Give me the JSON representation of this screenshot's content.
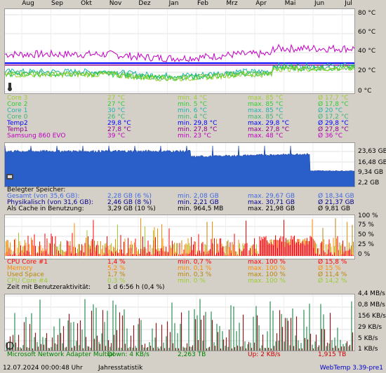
{
  "months": [
    "Aug",
    "Sep",
    "Okt",
    "Nov",
    "Dez",
    "Jan",
    "Feb",
    "Mrz",
    "Apr",
    "Mai",
    "Jun",
    "Jul"
  ],
  "temp_axis": [
    "80 °C",
    "60 °C",
    "40 °C",
    "20 °C",
    "0 °C"
  ],
  "temp_rows": [
    {
      "name": "Core 3",
      "cur": "27 °C",
      "min": "min. 4 °C",
      "max": "max. 85 °C",
      "avg": "Ø 17,7 °C",
      "color": "#9acd32"
    },
    {
      "name": "Core 2",
      "cur": "27 °C",
      "min": "min. 5 °C",
      "max": "max. 85 °C",
      "avg": "Ø 17,8 °C",
      "color": "#32cd32"
    },
    {
      "name": "Core 1",
      "cur": "30 °C",
      "min": "min. 6 °C",
      "max": "max. 85 °C",
      "avg": "Ø 20 °C",
      "color": "#20b2aa"
    },
    {
      "name": "Core 0",
      "cur": "26 °C",
      "min": "min. 4 °C",
      "max": "max. 85 °C",
      "avg": "Ø 17,2 °C",
      "color": "#3cb371"
    },
    {
      "name": "Temp2",
      "cur": "29,8 °C",
      "min": "min. 29,8 °C",
      "max": "max. 29,8 °C",
      "avg": "Ø 29,8 °C",
      "color": "#0000ff"
    },
    {
      "name": "Temp1",
      "cur": "27,8 °C",
      "min": "min. 27,8 °C",
      "max": "max. 27,8 °C",
      "avg": "Ø 27,8 °C",
      "color": "#8b008b"
    },
    {
      "name": "Samsung 860 EVO",
      "cur": "39 °C",
      "min": "min. 23 °C",
      "max": "max. 48 °C",
      "avg": "Ø 36 °C",
      "color": "#c000c0"
    }
  ],
  "mem_axis": [
    "23,63 GB",
    "16,48 GB",
    "9,34 GB",
    "2,2 GB"
  ],
  "mem_title": "Belegter Speicher:",
  "mem_rows": [
    {
      "name": "Gesamt (von 35,6 GB):",
      "cur": "2,28 GB (6 %)",
      "min": "min. 2,08 GB",
      "max": "max. 29,67 GB",
      "avg": "Ø 18,34 GB",
      "color": "#4169e1"
    },
    {
      "name": "Physikalisch (von 31,6 GB):",
      "cur": "2,46 GB (8 %)",
      "min": "min. 2,21 GB",
      "max": "max. 30,71 GB",
      "avg": "Ø 21,37 GB",
      "color": "#00008b"
    },
    {
      "name": "Als Cache in Benutzung:",
      "cur": "3,29 GB (10 %)",
      "min": "min. 964,5 MB",
      "max": "max. 21,98 GB",
      "avg": "Ø 9,81 GB",
      "color": "#000000"
    }
  ],
  "cpu_axis": [
    "100 %",
    "75 %",
    "50 %",
    "25 %",
    "0 %"
  ],
  "cpu_rows": [
    {
      "name": "CPU Core #1",
      "cur": "1,4 %",
      "min": "min. 0,7 %",
      "max": "max. 100 %",
      "avg": "Ø 15,8 %",
      "color": "#ff0000"
    },
    {
      "name": "Memory",
      "cur": "5,2 %",
      "min": "min. 0,1 %",
      "max": "max. 100 %",
      "avg": "Ø 15 %",
      "color": "#ff8c00"
    },
    {
      "name": "Used Space",
      "cur": "1,7 %",
      "min": "min. 0,3 %",
      "max": "max. 100 %",
      "avg": "Ø 11,4 %",
      "color": "#b8860b"
    },
    {
      "name": "CPU Core #4",
      "cur": "0,3 %",
      "min": "min. 0 %",
      "max": "max. 100 %",
      "avg": "Ø 14,2 %",
      "color": "#9acd32"
    }
  ],
  "activity": {
    "label": "Zeit mit Benutzeraktivität:",
    "value": "1 d 6:56 h (0,4 %)"
  },
  "net_axis": [
    "4,4 MB/s",
    "0,8 MB/s",
    "156 KB/s",
    "29 KB/s",
    "5 KB/s",
    "1 KB/s"
  ],
  "net_row": {
    "name": "Microsoft Network Adapter Multipl",
    "down": "Down: 4 KB/s",
    "down_total": "2,263 TB",
    "up": "Up: 2 KB/s",
    "up_total": "1,915 TB"
  },
  "footer": {
    "datetime": "12.07.2024 00:00:48 Uhr",
    "mode": "Jahresstatistik",
    "version": "WebTemp 3.39-pre1"
  }
}
